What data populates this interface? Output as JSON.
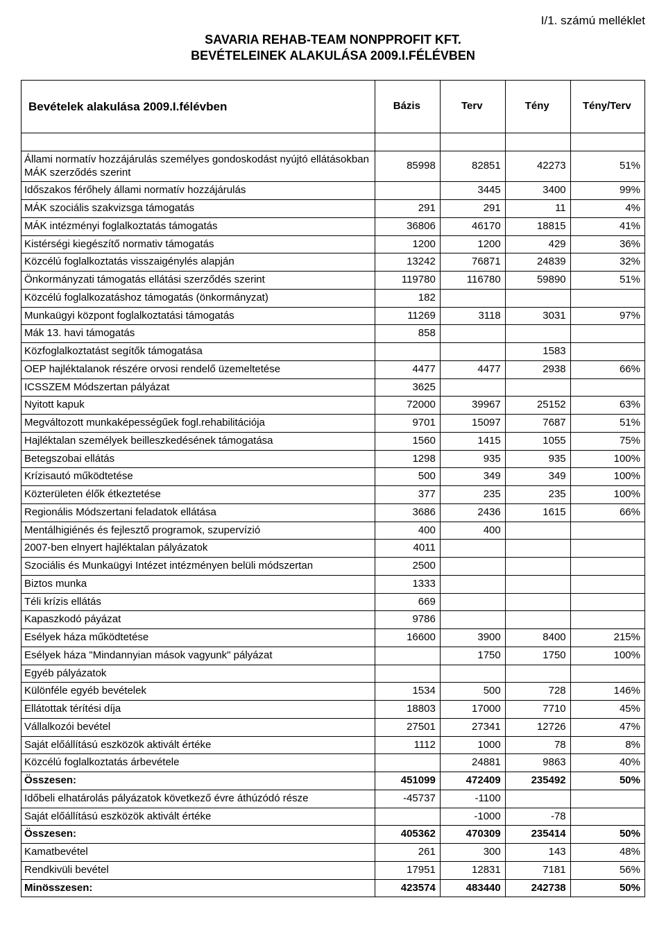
{
  "annex": "I/1. számú melléklet",
  "title_line1": "SAVARIA REHAB-TEAM NONPPROFIT KFT.",
  "title_line2": "BEVÉTELEINEK ALAKULÁSA 2009.I.FÉLÉVBEN",
  "columns": {
    "label": "Bevételek alakulása 2009.I.félévben",
    "c1": "Bázis",
    "c2": "Terv",
    "c3": "Tény",
    "c4": "Tény/Terv"
  },
  "rows": [
    {
      "spacer": true
    },
    {
      "label": "Állami normatív hozzájárulás személyes gondoskodást nyújtó ellátásokban MÁK szerződés szerint",
      "v": [
        "85998",
        "82851",
        "42273",
        "51%"
      ]
    },
    {
      "label": "Időszakos férőhely állami normatív hozzájárulás",
      "v": [
        "",
        "3445",
        "3400",
        "99%"
      ]
    },
    {
      "label": "MÁK szociális szakvizsga támogatás",
      "v": [
        "291",
        "291",
        "11",
        "4%"
      ]
    },
    {
      "label": "MÁK intézményi foglalkoztatás támogatás",
      "v": [
        "36806",
        "46170",
        "18815",
        "41%"
      ]
    },
    {
      "label": "Kistérségi kiegészítő normativ támogatás",
      "v": [
        "1200",
        "1200",
        "429",
        "36%"
      ]
    },
    {
      "label": "Közcélú foglalkoztatás visszaigénylés alapján",
      "v": [
        "13242",
        "76871",
        "24839",
        "32%"
      ]
    },
    {
      "label": "Önkormányzati támogatás ellátási szerződés szerint",
      "v": [
        "119780",
        "116780",
        "59890",
        "51%"
      ]
    },
    {
      "label": "Közcélú foglalkozatáshoz támogatás (önkormányzat)",
      "v": [
        "182",
        "",
        "",
        ""
      ]
    },
    {
      "label": "Munkaügyi központ foglalkoztatási  támogatás",
      "v": [
        "11269",
        "3118",
        "3031",
        "97%"
      ]
    },
    {
      "label": "Mák 13. havi támogatás",
      "v": [
        "858",
        "",
        "",
        ""
      ]
    },
    {
      "label": "Közfoglalkoztatást segítők támogatása",
      "v": [
        "",
        "",
        "1583",
        ""
      ]
    },
    {
      "label": "OEP hajléktalanok részére orvosi rendelő üzemeltetése",
      "v": [
        "4477",
        "4477",
        "2938",
        "66%"
      ]
    },
    {
      "label": "ICSSZEM Módszertan pályázat",
      "v": [
        "3625",
        "",
        "",
        ""
      ]
    },
    {
      "label": "Nyitott kapuk",
      "v": [
        "72000",
        "39967",
        "25152",
        "63%"
      ]
    },
    {
      "label": "Megváltozott munkaképességűek fogl.rehabilitációja",
      "v": [
        "9701",
        "15097",
        "7687",
        "51%"
      ]
    },
    {
      "label": "Hajléktalan személyek beilleszkedésének támogatása",
      "v": [
        "1560",
        "1415",
        "1055",
        "75%"
      ]
    },
    {
      "label": "Betegszobai ellátás",
      "v": [
        "1298",
        "935",
        "935",
        "100%"
      ]
    },
    {
      "label": "Krízisautó működtetése",
      "v": [
        "500",
        "349",
        "349",
        "100%"
      ]
    },
    {
      "label": "Közterületen élők étkeztetése",
      "v": [
        "377",
        "235",
        "235",
        "100%"
      ]
    },
    {
      "label": "Regionális Módszertani feladatok ellátása",
      "v": [
        "3686",
        "2436",
        "1615",
        "66%"
      ]
    },
    {
      "label": "Mentálhigiénés és fejlesztő programok, szupervízió",
      "v": [
        "400",
        "400",
        "",
        ""
      ]
    },
    {
      "label": "2007-ben elnyert hajléktalan pályázatok",
      "v": [
        "4011",
        "",
        "",
        ""
      ]
    },
    {
      "label": "Szociális és Munkaügyi Intézet intézményen belüli módszertan",
      "v": [
        "2500",
        "",
        "",
        ""
      ]
    },
    {
      "label": "Biztos munka",
      "v": [
        "1333",
        "",
        "",
        ""
      ]
    },
    {
      "label": "Téli krízis ellátás",
      "v": [
        "669",
        "",
        "",
        ""
      ]
    },
    {
      "label": "Kapaszkodó páyázat",
      "v": [
        "9786",
        "",
        "",
        ""
      ]
    },
    {
      "label": "Esélyek háza működtetése",
      "v": [
        "16600",
        "3900",
        "8400",
        "215%"
      ]
    },
    {
      "label": "Esélyek háza \"Mindannyian mások vagyunk\" pályázat",
      "v": [
        "",
        "1750",
        "1750",
        "100%"
      ]
    },
    {
      "label": "Egyéb pályázatok",
      "v": [
        "",
        "",
        "",
        ""
      ]
    },
    {
      "label": "Különféle egyéb bevételek",
      "v": [
        "1534",
        "500",
        "728",
        "146%"
      ]
    },
    {
      "label": "Ellátottak térítési díja",
      "v": [
        "18803",
        "17000",
        "7710",
        "45%"
      ]
    },
    {
      "label": "Vállalkozói bevétel",
      "v": [
        "27501",
        "27341",
        "12726",
        "47%"
      ]
    },
    {
      "label": "Saját előállítású eszközök aktivált értéke",
      "v": [
        "1112",
        "1000",
        "78",
        "8%"
      ]
    },
    {
      "label": "Közcélú foglalkoztatás árbevétele",
      "v": [
        "",
        "24881",
        "9863",
        "40%"
      ]
    },
    {
      "label": "Összesen:",
      "v": [
        "451099",
        "472409",
        "235492",
        "50%"
      ],
      "bold": true
    },
    {
      "label": "Időbeli elhatárolás pályázatok következő évre áthúzódó része",
      "v": [
        "-45737",
        "-1100",
        "",
        ""
      ]
    },
    {
      "label": "Saját előállítású eszközök aktivált értéke",
      "v": [
        "",
        "-1000",
        "-78",
        ""
      ]
    },
    {
      "label": "Összesen:",
      "v": [
        "405362",
        "470309",
        "235414",
        "50%"
      ],
      "bold": true
    },
    {
      "label": "Kamatbevétel",
      "v": [
        "261",
        "300",
        "143",
        "48%"
      ]
    },
    {
      "label": "Rendkivüli bevétel",
      "v": [
        "17951",
        "12831",
        "7181",
        "56%"
      ]
    },
    {
      "label": "Minösszesen:",
      "v": [
        "423574",
        "483440",
        "242738",
        "50%"
      ],
      "bold": true
    }
  ]
}
